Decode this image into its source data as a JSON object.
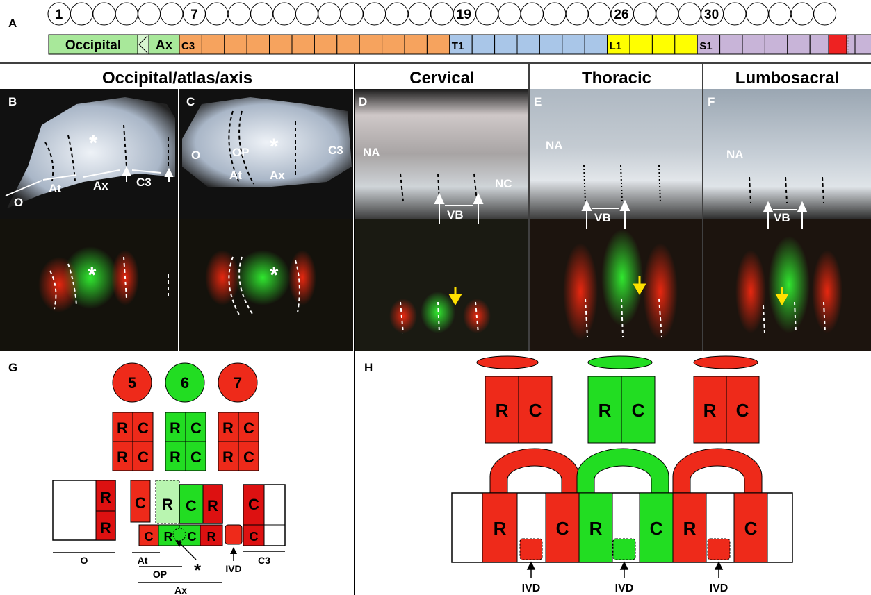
{
  "panel_labels": {
    "A": "A",
    "B": "B",
    "C": "C",
    "D": "D",
    "E": "E",
    "F": "F",
    "G": "G",
    "H": "H"
  },
  "panelA": {
    "circle_count": 35,
    "numbered_circles": [
      {
        "index": 1,
        "label": "1"
      },
      {
        "index": 7,
        "label": "7"
      },
      {
        "index": 19,
        "label": "19"
      },
      {
        "index": 26,
        "label": "26"
      },
      {
        "index": 30,
        "label": "30"
      }
    ],
    "bar": {
      "occipital": {
        "label": "Occipital",
        "color": "#a8e89a"
      },
      "axis": {
        "label": "Ax",
        "color": "#a8e89a"
      },
      "cervical": {
        "label": "C3",
        "color": "#f6a35e",
        "count": 12
      },
      "thoracic": {
        "label": "T1",
        "color": "#a9c6e8",
        "count": 7
      },
      "lumbar": {
        "label": "L1",
        "color": "#ffff00",
        "count": 4
      },
      "sacral": {
        "label": "S1",
        "color": "#c8b4d8",
        "count": 8
      },
      "tail": {
        "color": "#ee2222"
      }
    }
  },
  "section_titles": {
    "occipital": "Occipital/atlas/axis",
    "cervical": "Cervical",
    "thoracic": "Thoracic",
    "lumbosacral": "Lumbosacral"
  },
  "photo_labels": {
    "B": {
      "O": "O",
      "At": "At",
      "Ax": "Ax",
      "C3": "C3",
      "star": "*"
    },
    "C": {
      "O": "O",
      "OP": "OP",
      "At": "At",
      "Ax": "Ax",
      "C3": "C3",
      "star": "*"
    },
    "D": {
      "NA": "NA",
      "NC": "NC",
      "VB": "VB"
    },
    "E": {
      "NA": "NA",
      "VB": "VB"
    },
    "F": {
      "NA": "NA",
      "VB": "VB"
    }
  },
  "panelG": {
    "somites": [
      "5",
      "6",
      "7"
    ],
    "R": "R",
    "C": "C",
    "labels": {
      "O": "O",
      "At": "At",
      "OP": "OP",
      "Ax": "Ax",
      "IVD": "IVD",
      "C3": "C3",
      "star": "*"
    },
    "colors": {
      "red": "#ee2a1a",
      "green": "#22dd22",
      "lightgreen": "#b9f5b0",
      "darkred": "#dd1111"
    }
  },
  "panelH": {
    "R": "R",
    "C": "C",
    "ivd_label": "IVD",
    "colors": {
      "red": "#ee2a1a",
      "green": "#22dd22"
    }
  }
}
